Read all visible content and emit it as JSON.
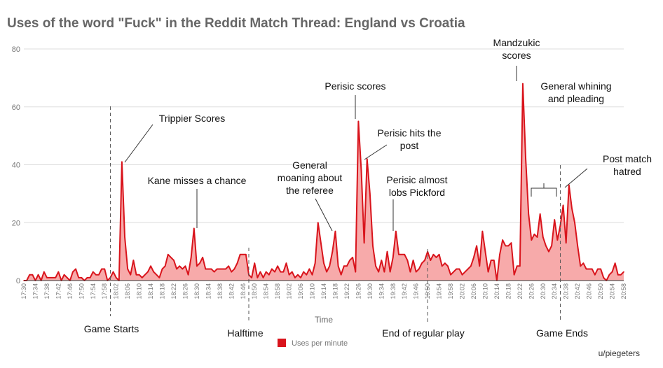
{
  "chart_data": {
    "type": "area",
    "title": "Uses of the word \"Fuck\" in the Reddit Match Thread: England vs Croatia",
    "xlabel": "Time",
    "ylabel": "",
    "ylim": [
      0,
      80
    ],
    "yticks": [
      0,
      20,
      40,
      60,
      80
    ],
    "grid": true,
    "legend_position": "bottom",
    "colors": {
      "line": "#d9141c",
      "fill": "#f7aaaa"
    },
    "start_time": "17:30",
    "end_time": "20:58",
    "x_tick_labels": [
      "17:30",
      "17:34",
      "17:38",
      "17:42",
      "17:46",
      "17:50",
      "17:54",
      "17:58",
      "18:02",
      "18:06",
      "18:10",
      "18:14",
      "18:18",
      "18:22",
      "18:26",
      "18:30",
      "18:34",
      "18:38",
      "18:42",
      "18:46",
      "18:50",
      "18:54",
      "18:58",
      "19:02",
      "19:06",
      "19:10",
      "19:14",
      "19:18",
      "19:22",
      "19:26",
      "19:30",
      "19:34",
      "19:38",
      "19:42",
      "19:46",
      "19:50",
      "19:54",
      "19:58",
      "20:02",
      "20:06",
      "20:10",
      "20:14",
      "20:18",
      "20:22",
      "20:26",
      "20:30",
      "20:34",
      "20:38",
      "20:42",
      "20:46",
      "20:50",
      "20:54",
      "20:58"
    ],
    "series": [
      {
        "name": "Uses per minute",
        "values": [
          0,
          0,
          2,
          2,
          0,
          2,
          0,
          3,
          1,
          1,
          1,
          1,
          3,
          0,
          2,
          1,
          0,
          3,
          4,
          1,
          1,
          0,
          1,
          1,
          3,
          2,
          2,
          4,
          4,
          0,
          1,
          3,
          1,
          0,
          41,
          15,
          4,
          2,
          7,
          2,
          2,
          1,
          2,
          3,
          5,
          3,
          2,
          1,
          4,
          5,
          9,
          8,
          7,
          4,
          5,
          4,
          5,
          2,
          8,
          18,
          5,
          6,
          8,
          4,
          4,
          4,
          3,
          4,
          4,
          4,
          4,
          5,
          3,
          4,
          6,
          9,
          9,
          9,
          2,
          1,
          6,
          1,
          3,
          1,
          3,
          2,
          4,
          3,
          5,
          3,
          3,
          6,
          2,
          3,
          1,
          2,
          1,
          3,
          2,
          4,
          2,
          6,
          20,
          13,
          6,
          3,
          5,
          10,
          17,
          5,
          2,
          5,
          5,
          7,
          8,
          3,
          55,
          38,
          13,
          42,
          30,
          12,
          5,
          3,
          7,
          3,
          10,
          3,
          8,
          17,
          9,
          9,
          9,
          7,
          3,
          7,
          3,
          4,
          6,
          7,
          10,
          7,
          9,
          8,
          9,
          5,
          6,
          5,
          2,
          3,
          4,
          4,
          2,
          3,
          4,
          5,
          8,
          12,
          5,
          17,
          10,
          3,
          7,
          7,
          0,
          9,
          14,
          12,
          12,
          13,
          2,
          5,
          5,
          68,
          42,
          23,
          14,
          16,
          15,
          23,
          15,
          12,
          10,
          12,
          21,
          14,
          19,
          26,
          13,
          33,
          25,
          20,
          12,
          5,
          6,
          4,
          4,
          4,
          2,
          4,
          4,
          1,
          0,
          2,
          3,
          6,
          2,
          2,
          3
        ]
      }
    ],
    "markers": [
      {
        "label": "Game Starts",
        "time": "18:00"
      },
      {
        "label": "Halftime",
        "time": "18:48"
      },
      {
        "label": "End of regular play",
        "time": "19:50"
      },
      {
        "label": "Game Ends",
        "time": "20:36"
      }
    ],
    "annotations": [
      {
        "lines": [
          "Trippier Scores"
        ],
        "time": "18:05",
        "value": 41
      },
      {
        "lines": [
          "Kane misses a chance"
        ],
        "time": "18:30",
        "value": 18
      },
      {
        "lines": [
          "General",
          "moaning about",
          "the referee"
        ],
        "time": "19:14",
        "value": 17
      },
      {
        "lines": [
          "Perisic scores"
        ],
        "time": "19:25",
        "value": 55
      },
      {
        "lines": [
          "Perisic hits the",
          "post"
        ],
        "time": "19:28",
        "value": 42
      },
      {
        "lines": [
          "Perisic almost",
          "lobs Pickford"
        ],
        "time": "19:38",
        "value": 17
      },
      {
        "lines": [
          "Mandzukic",
          "scores"
        ],
        "time": "20:22",
        "value": 68
      },
      {
        "lines": [
          "General whining",
          "and pleading"
        ],
        "time": "20:30",
        "value": 26
      },
      {
        "lines": [
          "Post match",
          "hatred"
        ],
        "time": "20:38",
        "value": 33
      }
    ]
  },
  "credit": "u/piegeters"
}
